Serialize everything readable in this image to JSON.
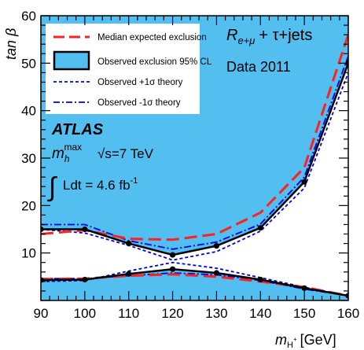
{
  "chart_data": {
    "type": "line",
    "xlabel": {
      "main": "m",
      "sub": "H",
      "sup": "+",
      "unit": "[GeV]"
    },
    "ylabel": "tan β",
    "xlim": [
      90,
      160
    ],
    "ylim": [
      0,
      60
    ],
    "xticks": [
      "90",
      "100",
      "110",
      "120",
      "130",
      "140",
      "150",
      "160"
    ],
    "yticks": [
      "10",
      "20",
      "30",
      "40",
      "50",
      "60"
    ],
    "grid": false,
    "legend_position": "top-left",
    "colors": {
      "fill": "#53bef0",
      "expected": "#ff2020",
      "theory_plus": "#0000dd",
      "theory_minus": "#0000dd",
      "observed": "#000000"
    },
    "series": [
      {
        "name": "Median expected exclusion",
        "style": "dashed-red",
        "upper": {
          "x": [
            90,
            100,
            110,
            120,
            130,
            140,
            150,
            160
          ],
          "y": [
            14.0,
            14.8,
            13.0,
            12.8,
            14.0,
            18.5,
            28.0,
            56.0
          ]
        },
        "lower": {
          "x": [
            90,
            100,
            110,
            120,
            130,
            140,
            150,
            160
          ],
          "y": [
            4.5,
            4.6,
            5.2,
            5.5,
            5.0,
            4.0,
            2.8,
            1.0
          ]
        }
      },
      {
        "name": "Observed exclusion 95% CL",
        "style": "solid-black-filled",
        "upper": {
          "x": [
            90,
            100,
            110,
            120,
            130,
            140,
            150,
            160
          ],
          "y": [
            15.0,
            15.0,
            12.0,
            9.6,
            11.5,
            15.3,
            25.0,
            50.0
          ]
        },
        "lower": {
          "x": [
            90,
            100,
            110,
            120,
            130,
            140,
            150,
            160
          ],
          "y": [
            4.3,
            4.4,
            5.6,
            6.6,
            5.8,
            4.4,
            2.6,
            1.0
          ]
        }
      },
      {
        "name": "Observed +1σ theory",
        "style": "dotted-blue",
        "upper": {
          "x": [
            90,
            100,
            110,
            120,
            130,
            140,
            150,
            160
          ],
          "y": [
            15.0,
            14.2,
            11.6,
            8.5,
            10.3,
            14.6,
            23.7,
            48.0
          ]
        },
        "lower": {
          "x": [
            90,
            100,
            110,
            120,
            130,
            140,
            150,
            160
          ],
          "y": [
            4.0,
            4.2,
            6.2,
            8.0,
            6.8,
            4.8,
            2.8,
            1.0
          ]
        }
      },
      {
        "name": "Observed -1σ theory",
        "style": "dashdot-blue",
        "upper": {
          "x": [
            90,
            100,
            110,
            120,
            130,
            140,
            150,
            160
          ],
          "y": [
            16.0,
            16.0,
            12.6,
            10.8,
            12.3,
            16.1,
            26.0,
            51.5
          ]
        },
        "lower": {
          "x": [
            90,
            100,
            110,
            120,
            130,
            140,
            150,
            160
          ],
          "y": [
            4.6,
            4.6,
            5.2,
            5.8,
            5.4,
            4.2,
            2.4,
            1.0
          ]
        }
      }
    ],
    "annotations": {
      "channel": "R",
      "channel_sub": "e+μ",
      "channel_rest": "+ τ+jets",
      "data": "Data 2011",
      "experiment": "ATLAS",
      "scenario_main": "m",
      "scenario_sub": "h",
      "scenario_sup": "max",
      "energy": "√s=7 TeV",
      "lumi": "Ldt = 4.6 fb",
      "lumi_sup": "-1"
    }
  }
}
